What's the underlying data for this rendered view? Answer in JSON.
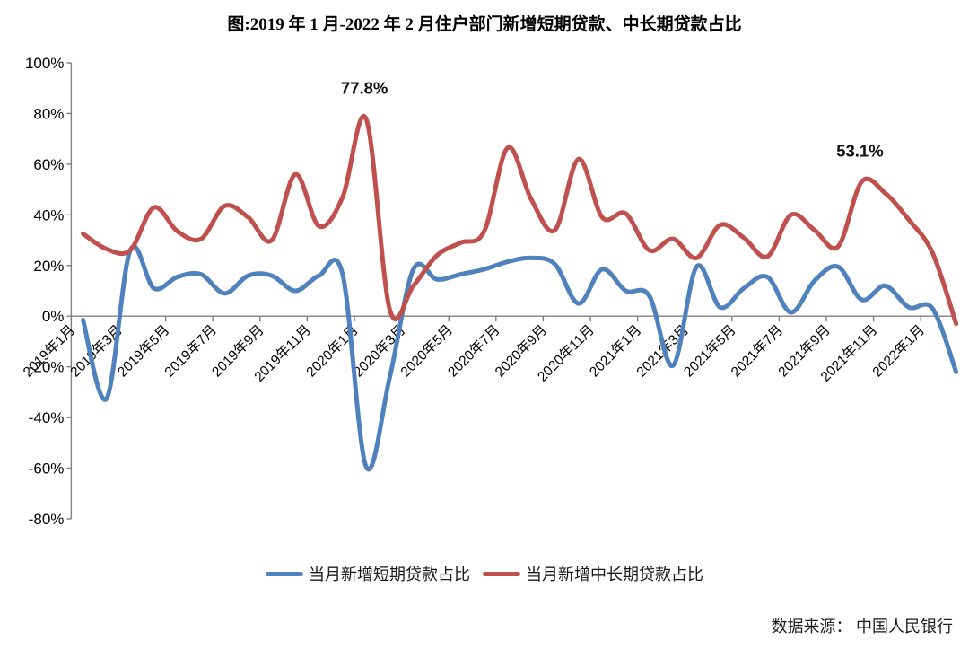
{
  "title": "图:2019 年 1 月-2022 年 2 月住户部门新增短期贷款、中长期贷款占比",
  "source": "数据来源： 中国人民银行",
  "colors": {
    "short_term": "#4F81BD",
    "medium_long_term": "#C0504D",
    "axis": "#808080",
    "text": "#1a1a1a"
  },
  "legend": {
    "items": [
      {
        "label": "当月新增短期贷款占比",
        "color": "#4F81BD"
      },
      {
        "label": "当月新增中长期贷款占比",
        "color": "#C0504D"
      }
    ]
  },
  "chart_data": {
    "type": "line",
    "title": "图:2019 年 1 月-2022 年 2 月住户部门新增短期贷款、中长期贷款占比",
    "xlabel": "",
    "ylabel": "",
    "ylim": [
      -80,
      100
    ],
    "y_tick_values": [
      100,
      80,
      60,
      40,
      20,
      0,
      -20,
      -40,
      -60,
      -80
    ],
    "y_tick_labels": [
      "100%",
      "80%",
      "60%",
      "40%",
      "20%",
      "0%",
      "-20%",
      "-40%",
      "-60%",
      "-80%"
    ],
    "x_tick_every": 2,
    "x_tick_labels": [
      "2019年1月",
      "2019年3月",
      "2019年5月",
      "2019年7月",
      "2019年9月",
      "2019年11月",
      "2020年1月",
      "2020年3月",
      "2020年5月",
      "2020年7月",
      "2020年9月",
      "2020年11月",
      "2021年1月",
      "2021年3月",
      "2021年5月",
      "2021年7月",
      "2021年9月",
      "2021年11月",
      "2022年1月"
    ],
    "grid": false,
    "zero_line": true,
    "legend_position": "bottom",
    "smooth": true,
    "categories": [
      "2019年1月",
      "2019年2月",
      "2019年3月",
      "2019年4月",
      "2019年5月",
      "2019年6月",
      "2019年7月",
      "2019年8月",
      "2019年9月",
      "2019年10月",
      "2019年11月",
      "2019年12月",
      "2020年1月",
      "2020年2月",
      "2020年3月",
      "2020年4月",
      "2020年5月",
      "2020年6月",
      "2020年7月",
      "2020年8月",
      "2020年9月",
      "2020年10月",
      "2020年11月",
      "2020年12月",
      "2021年1月",
      "2021年2月",
      "2021年3月",
      "2021年4月",
      "2021年5月",
      "2021年6月",
      "2021年7月",
      "2021年8月",
      "2021年9月",
      "2021年10月",
      "2021年11月",
      "2021年12月",
      "2022年1月",
      "2022年2月"
    ],
    "series": [
      {
        "name": "当月新增短期贷款占比",
        "color": "#4F81BD",
        "values": [
          -1.5,
          -32.5,
          26,
          11,
          15.5,
          16.5,
          9,
          16,
          16,
          10,
          16,
          16.5,
          -59.5,
          -24,
          18.5,
          14.5,
          16.5,
          18.5,
          21.5,
          23,
          20.5,
          5,
          18.5,
          10,
          8,
          -19.5,
          19.5,
          3.5,
          11,
          15.5,
          1.5,
          14,
          19.5,
          6.5,
          12,
          3.5,
          3,
          -22
        ]
      },
      {
        "name": "当月新增中长期贷款占比",
        "color": "#C0504D",
        "values": [
          32.5,
          26.5,
          26,
          42.9,
          33.5,
          30.5,
          43.5,
          39,
          30,
          56,
          35.5,
          47,
          77.8,
          2.5,
          12,
          24,
          29,
          33.5,
          66.5,
          46,
          34,
          62,
          39,
          40.5,
          26,
          30.5,
          23,
          36,
          31,
          23.5,
          40,
          34,
          27.5,
          53.1,
          48.5,
          38,
          25,
          -3
        ]
      }
    ],
    "annotations": [
      {
        "text": "77.8%",
        "series": 1,
        "index": 12
      },
      {
        "text": "53.1%",
        "series": 1,
        "index": 33
      }
    ]
  }
}
